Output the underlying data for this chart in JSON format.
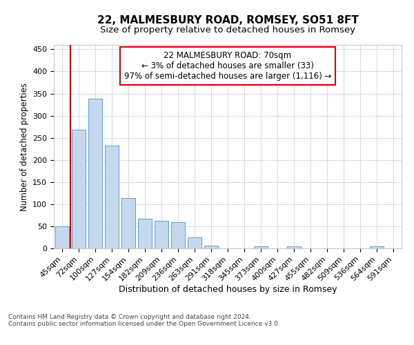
{
  "title": "22, MALMESBURY ROAD, ROMSEY, SO51 8FT",
  "subtitle": "Size of property relative to detached houses in Romsey",
  "xlabel": "Distribution of detached houses by size in Romsey",
  "ylabel": "Number of detached properties",
  "categories": [
    "45sqm",
    "72sqm",
    "100sqm",
    "127sqm",
    "154sqm",
    "182sqm",
    "209sqm",
    "236sqm",
    "263sqm",
    "291sqm",
    "318sqm",
    "345sqm",
    "373sqm",
    "400sqm",
    "427sqm",
    "455sqm",
    "482sqm",
    "509sqm",
    "536sqm",
    "564sqm",
    "591sqm"
  ],
  "values": [
    50,
    268,
    338,
    232,
    114,
    67,
    62,
    60,
    25,
    7,
    0,
    0,
    4,
    0,
    5,
    0,
    0,
    0,
    0,
    4,
    0
  ],
  "bar_color": "#c5d8ed",
  "bar_edge_color": "#5a9fd4",
  "highlight_line_color": "#cc0000",
  "annotation_box_text": "22 MALMESBURY ROAD: 70sqm\n← 3% of detached houses are smaller (33)\n97% of semi-detached houses are larger (1,116) →",
  "title_fontsize": 11,
  "subtitle_fontsize": 9.5,
  "xlabel_fontsize": 9,
  "ylabel_fontsize": 8.5,
  "tick_fontsize": 8,
  "annotation_fontsize": 8.5,
  "footer_text": "Contains HM Land Registry data © Crown copyright and database right 2024.\nContains public sector information licensed under the Open Government Licence v3.0.",
  "background_color": "#ffffff",
  "grid_color": "#c8d4e8",
  "ylim": [
    0,
    460
  ]
}
